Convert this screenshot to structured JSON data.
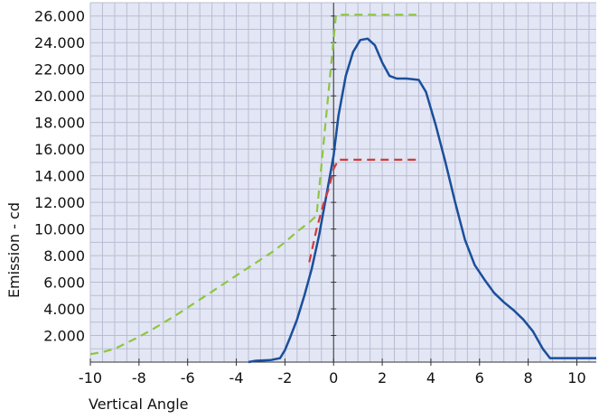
{
  "chart_data": {
    "type": "line",
    "xlabel": "Vertical Angle",
    "ylabel": "Emission - cd",
    "xlim": [
      -10,
      10.8
    ],
    "ylim": [
      0,
      27000
    ],
    "x_ticks": [
      -10,
      -8,
      -6,
      -4,
      -2,
      0,
      2,
      4,
      6,
      8,
      10
    ],
    "x_tick_labels": [
      "-10",
      "-8",
      "-6",
      "-4",
      "-2",
      "0",
      "2",
      "4",
      "6",
      "8",
      "10"
    ],
    "y_ticks": [
      2000,
      4000,
      6000,
      8000,
      10000,
      12000,
      14000,
      16000,
      18000,
      20000,
      22000,
      24000,
      26000
    ],
    "y_tick_labels": [
      "2.000",
      "4.000",
      "6.000",
      "8.000",
      "10.000",
      "12.000",
      "14.000",
      "16.000",
      "18.000",
      "20.000",
      "22.000",
      "24.000",
      "26.000"
    ],
    "grid": true,
    "series": [
      {
        "color": "#1a4f9c",
        "style": "solid",
        "points": [
          [
            -3.5,
            0
          ],
          [
            -3.2,
            100
          ],
          [
            -2.6,
            150
          ],
          [
            -2.2,
            300
          ],
          [
            -2.0,
            900
          ],
          [
            -1.8,
            1800
          ],
          [
            -1.5,
            3200
          ],
          [
            -1.2,
            5000
          ],
          [
            -0.9,
            7000
          ],
          [
            -0.6,
            9500
          ],
          [
            -0.3,
            12500
          ],
          [
            0.0,
            15500
          ],
          [
            0.2,
            18500
          ],
          [
            0.5,
            21500
          ],
          [
            0.8,
            23300
          ],
          [
            1.1,
            24200
          ],
          [
            1.4,
            24300
          ],
          [
            1.7,
            23800
          ],
          [
            2.0,
            22500
          ],
          [
            2.3,
            21500
          ],
          [
            2.6,
            21300
          ],
          [
            3.0,
            21300
          ],
          [
            3.5,
            21200
          ],
          [
            3.8,
            20300
          ],
          [
            4.2,
            17800
          ],
          [
            4.6,
            15000
          ],
          [
            5.0,
            12000
          ],
          [
            5.4,
            9200
          ],
          [
            5.8,
            7300
          ],
          [
            6.2,
            6200
          ],
          [
            6.6,
            5200
          ],
          [
            7.0,
            4500
          ],
          [
            7.4,
            3900
          ],
          [
            7.8,
            3200
          ],
          [
            8.2,
            2300
          ],
          [
            8.6,
            1000
          ],
          [
            8.9,
            300
          ],
          [
            9.2,
            300
          ],
          [
            10.0,
            300
          ],
          [
            10.8,
            300
          ]
        ]
      },
      {
        "color": "#8dc63f",
        "style": "dashed",
        "points": [
          [
            -10.0,
            600
          ],
          [
            -9.5,
            750
          ],
          [
            -9.0,
            1000
          ],
          [
            -8.5,
            1450
          ],
          [
            -8.0,
            1900
          ],
          [
            -7.5,
            2400
          ],
          [
            -7.0,
            2950
          ],
          [
            -6.5,
            3500
          ],
          [
            -6.0,
            4100
          ],
          [
            -5.5,
            4700
          ],
          [
            -5.0,
            5300
          ],
          [
            -4.5,
            5900
          ],
          [
            -4.0,
            6500
          ],
          [
            -3.5,
            7100
          ],
          [
            -3.0,
            7700
          ],
          [
            -2.5,
            8300
          ],
          [
            -2.0,
            9000
          ],
          [
            -1.5,
            9800
          ],
          [
            -1.0,
            10500
          ],
          [
            -0.7,
            11000
          ],
          [
            0.1,
            26100
          ],
          [
            3.4,
            26100
          ]
        ]
      },
      {
        "color": "#d13b3b",
        "style": "dashed",
        "points": [
          [
            -1.0,
            7500
          ],
          [
            -0.7,
            10000
          ],
          [
            -0.4,
            12000
          ],
          [
            -0.2,
            13000
          ],
          [
            0.0,
            14500
          ],
          [
            0.2,
            15200
          ],
          [
            3.4,
            15200
          ]
        ]
      }
    ]
  }
}
